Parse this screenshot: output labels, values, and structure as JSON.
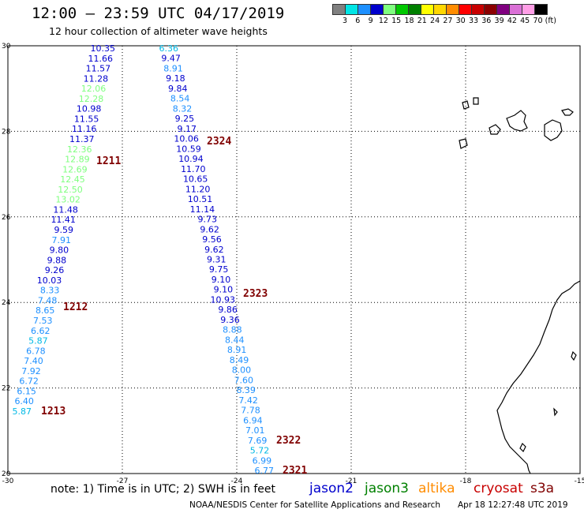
{
  "header": {
    "title": "12:00 – 23:59 UTC 04/17/2019",
    "subtitle": "12 hour collection of altimeter wave heights"
  },
  "color_scale": {
    "labels": [
      "3",
      "6",
      "9",
      "12",
      "15",
      "18",
      "21",
      "24",
      "27",
      "30",
      "33",
      "36",
      "39",
      "42",
      "45",
      "70",
      "(ft)"
    ],
    "colors": [
      "#808080",
      "#00e5e5",
      "#1e90ff",
      "#0000cd",
      "#7fff7f",
      "#00c800",
      "#008000",
      "#ffff00",
      "#ffd700",
      "#ff8c00",
      "#ff0000",
      "#c80000",
      "#8b0000",
      "#800080",
      "#da70d6",
      "#ff9ee6",
      "#000000"
    ]
  },
  "axes": {
    "lon_labels": [
      "-30",
      "-27",
      "-24",
      "-21",
      "-18",
      "-15"
    ],
    "lat_labels": [
      "30",
      "28",
      "26",
      "24",
      "22",
      "20"
    ],
    "lon_values": [
      -30,
      -27,
      -24,
      -21,
      -18,
      -15
    ],
    "lat_values": [
      30,
      28,
      26,
      24,
      22,
      20
    ]
  },
  "tracks": [
    {
      "id": "1213",
      "satellite": "jason2",
      "points": [
        {
          "v": "10.35",
          "c": "#0000cd"
        },
        {
          "v": "11.66",
          "c": "#0000cd"
        },
        {
          "v": "11.57",
          "c": "#0000cd"
        },
        {
          "v": "11.28",
          "c": "#0000cd"
        },
        {
          "v": "12.06",
          "c": "#7fff7f"
        },
        {
          "v": "12.28",
          "c": "#7fff7f"
        },
        {
          "v": "10.98",
          "c": "#0000cd"
        },
        {
          "v": "11.55",
          "c": "#0000cd"
        },
        {
          "v": "11.16",
          "c": "#0000cd"
        },
        {
          "v": "11.37",
          "c": "#0000cd"
        },
        {
          "v": "12.36",
          "c": "#7fff7f"
        },
        {
          "v": "12.89",
          "c": "#7fff7f"
        },
        {
          "v": "12.69",
          "c": "#7fff7f"
        },
        {
          "v": "12.45",
          "c": "#7fff7f"
        },
        {
          "v": "12.50",
          "c": "#7fff7f"
        },
        {
          "v": "13.02",
          "c": "#7fff7f"
        },
        {
          "v": "11.48",
          "c": "#0000cd"
        },
        {
          "v": "11.41",
          "c": "#0000cd"
        },
        {
          "v": "9.59",
          "c": "#0000cd"
        },
        {
          "v": "7.91",
          "c": "#1e90ff"
        },
        {
          "v": "9.80",
          "c": "#0000cd"
        },
        {
          "v": "9.88",
          "c": "#0000cd"
        },
        {
          "v": "9.26",
          "c": "#0000cd"
        },
        {
          "v": "10.03",
          "c": "#0000cd"
        },
        {
          "v": "8.33",
          "c": "#1e90ff"
        },
        {
          "v": "7.48",
          "c": "#1e90ff"
        },
        {
          "v": "8.65",
          "c": "#1e90ff"
        },
        {
          "v": "7.53",
          "c": "#1e90ff"
        },
        {
          "v": "6.62",
          "c": "#1e90ff"
        },
        {
          "v": "5.87",
          "c": "#00b8e5"
        },
        {
          "v": "6.78",
          "c": "#1e90ff"
        },
        {
          "v": "7.40",
          "c": "#1e90ff"
        },
        {
          "v": "7.92",
          "c": "#1e90ff"
        },
        {
          "v": "6.72",
          "c": "#1e90ff"
        },
        {
          "v": "6.15",
          "c": "#1e90ff"
        },
        {
          "v": "6.40",
          "c": "#1e90ff"
        },
        {
          "v": "5.87",
          "c": "#00b8e5"
        }
      ]
    },
    {
      "id": "2324",
      "satellite": "jason2",
      "points": [
        {
          "v": "6.36",
          "c": "#00b8e5"
        },
        {
          "v": "9.47",
          "c": "#0000cd"
        },
        {
          "v": "8.91",
          "c": "#1e90ff"
        },
        {
          "v": "9.18",
          "c": "#0000cd"
        },
        {
          "v": "9.84",
          "c": "#0000cd"
        },
        {
          "v": "8.54",
          "c": "#1e90ff"
        },
        {
          "v": "8.32",
          "c": "#1e90ff"
        },
        {
          "v": "9.25",
          "c": "#0000cd"
        },
        {
          "v": "9.17",
          "c": "#0000cd"
        },
        {
          "v": "10.06",
          "c": "#0000cd"
        },
        {
          "v": "10.59",
          "c": "#0000cd"
        },
        {
          "v": "10.94",
          "c": "#0000cd"
        },
        {
          "v": "11.70",
          "c": "#0000cd"
        },
        {
          "v": "10.65",
          "c": "#0000cd"
        },
        {
          "v": "11.20",
          "c": "#0000cd"
        },
        {
          "v": "10.51",
          "c": "#0000cd"
        },
        {
          "v": "11.14",
          "c": "#0000cd"
        },
        {
          "v": "9.73",
          "c": "#0000cd"
        },
        {
          "v": "9.62",
          "c": "#0000cd"
        },
        {
          "v": "9.56",
          "c": "#0000cd"
        },
        {
          "v": "9.62",
          "c": "#0000cd"
        },
        {
          "v": "9.31",
          "c": "#0000cd"
        },
        {
          "v": "9.75",
          "c": "#0000cd"
        },
        {
          "v": "9.10",
          "c": "#0000cd"
        },
        {
          "v": "9.10",
          "c": "#0000cd"
        },
        {
          "v": "10.93",
          "c": "#0000cd"
        },
        {
          "v": "9.86",
          "c": "#0000cd"
        },
        {
          "v": "9.36",
          "c": "#0000cd"
        },
        {
          "v": "8.88",
          "c": "#1e90ff"
        },
        {
          "v": "8.44",
          "c": "#1e90ff"
        },
        {
          "v": "8.91",
          "c": "#1e90ff"
        },
        {
          "v": "8.49",
          "c": "#1e90ff"
        },
        {
          "v": "8.00",
          "c": "#1e90ff"
        },
        {
          "v": "7.60",
          "c": "#1e90ff"
        },
        {
          "v": "8.39",
          "c": "#1e90ff"
        },
        {
          "v": "7.42",
          "c": "#1e90ff"
        },
        {
          "v": "7.78",
          "c": "#1e90ff"
        },
        {
          "v": "6.94",
          "c": "#1e90ff"
        },
        {
          "v": "7.01",
          "c": "#1e90ff"
        },
        {
          "v": "7.69",
          "c": "#1e90ff"
        },
        {
          "v": "5.72",
          "c": "#00b8e5"
        },
        {
          "v": "6.99",
          "c": "#1e90ff"
        },
        {
          "v": "6.77",
          "c": "#1e90ff"
        }
      ]
    }
  ],
  "track_labels": [
    {
      "id": "1211",
      "color": "#800000"
    },
    {
      "id": "1212",
      "color": "#800000"
    },
    {
      "id": "1213",
      "color": "#800000"
    },
    {
      "id": "2324",
      "color": "#800000"
    },
    {
      "id": "2323",
      "color": "#800000"
    },
    {
      "id": "2322",
      "color": "#800000"
    },
    {
      "id": "2321",
      "color": "#800000"
    }
  ],
  "note": "note:  1) Time is in UTC;  2) SWH is in feet",
  "legend": [
    {
      "name": "jason2",
      "color": "#0000cd"
    },
    {
      "name": "jason3",
      "color": "#008000"
    },
    {
      "name": "altika",
      "color": "#ff8c00"
    },
    {
      "name": "cryosat",
      "color": "#c80000"
    },
    {
      "name": "s3a",
      "color": "#800000"
    }
  ],
  "footer": {
    "credit": "NOAA/NESDIS Center for Satellite Applications and Research",
    "timestamp": "Apr 18 12:27:48 UTC 2019"
  }
}
